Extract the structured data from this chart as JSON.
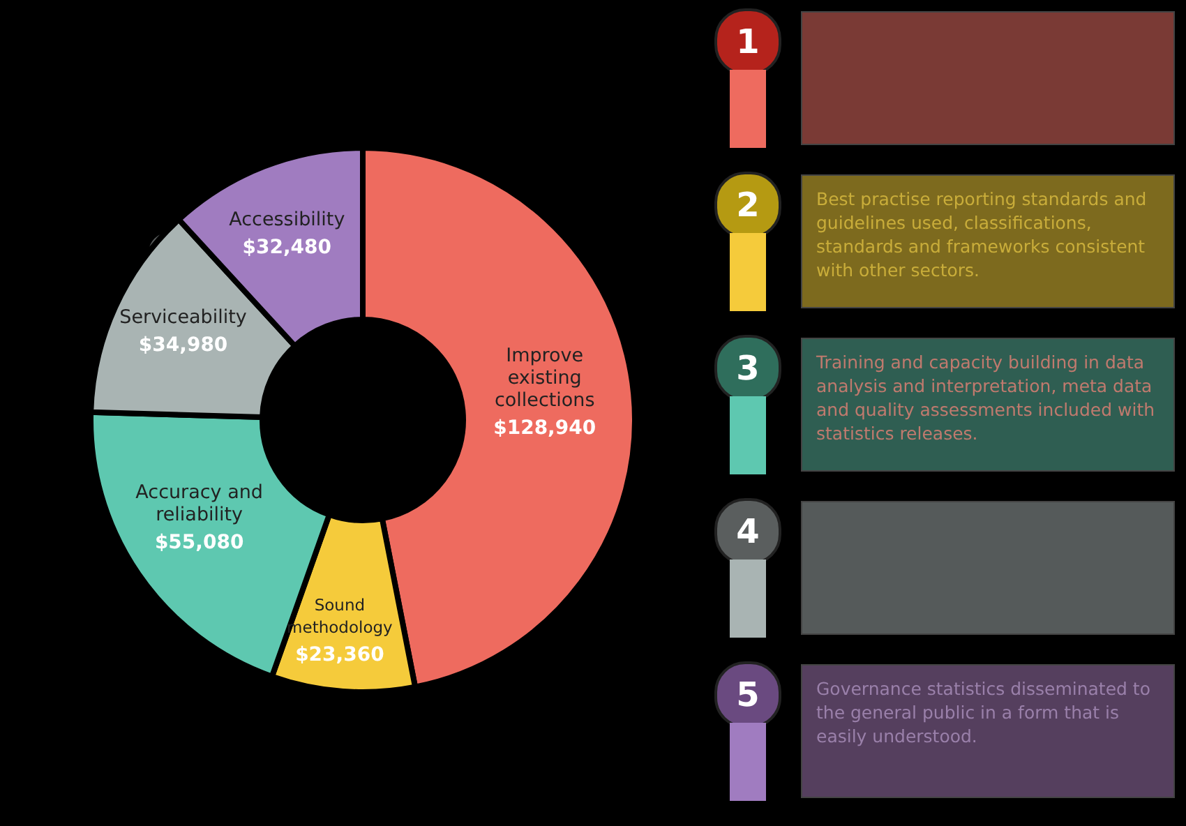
{
  "chart_data": {
    "type": "donut",
    "categories": [
      "Improve existing collections",
      "Sound methodology",
      "Accuracy and reliability",
      "Serviceability",
      "Accessibility"
    ],
    "values": [
      128940,
      23360,
      55080,
      34980,
      32480
    ],
    "value_labels": [
      "$128,940",
      "$23,360",
      "$55,080",
      "$34,980",
      "$32,480"
    ],
    "colors": [
      "#ee6b5f",
      "#f5cb3b",
      "#5ec8b0",
      "#a9b4b3",
      "#a07cc0"
    ],
    "annotations": [
      "1",
      "2",
      "3",
      "4",
      "5",
      "Best practise reporting standards and guidelines used, classifications, standards and frameworks consistent with other sectors.",
      "Training and capacity building in data analysis and interpretation, meta data and quality assessments included with statistics releases.",
      "Governance statistics disseminated to the general public in a form that is easily understood."
    ]
  }
}
